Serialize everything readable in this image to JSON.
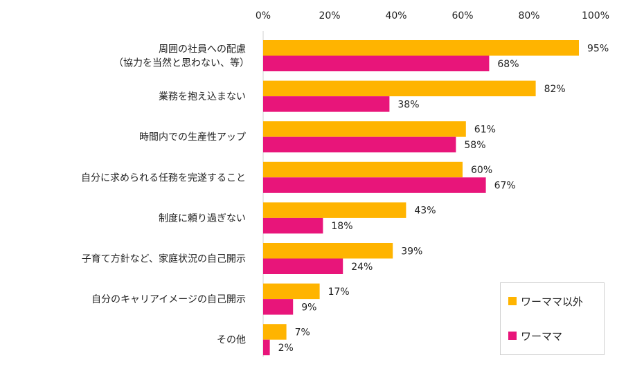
{
  "chart_data": {
    "type": "bar",
    "orientation": "horizontal",
    "title": "",
    "xlabel": "",
    "ylabel": "",
    "xlim": [
      0,
      100
    ],
    "x_ticks": [
      "0%",
      "20%",
      "40%",
      "60%",
      "80%",
      "100%"
    ],
    "tick_values": [
      0,
      20,
      40,
      60,
      80,
      100
    ],
    "grid": false,
    "legend_position": "bottom-right",
    "categories": [
      [
        "周囲の社員への配慮",
        "（協力を当然と思わない、等）"
      ],
      [
        "業務を抱え込まない"
      ],
      [
        "時間内での生産性アップ"
      ],
      [
        "自分に求められる任務を完遂すること"
      ],
      [
        "制度に頼り過ぎない"
      ],
      [
        "子育て方針など、家庭状況の自己開示"
      ],
      [
        "自分のキャリアイメージの自己開示"
      ],
      [
        "その他"
      ]
    ],
    "series": [
      {
        "name": "ワーママ以外",
        "color": "#FFB400",
        "values": [
          95,
          82,
          61,
          60,
          43,
          39,
          17,
          7
        ]
      },
      {
        "name": "ワーママ",
        "color": "#E8157A",
        "values": [
          68,
          38,
          58,
          67,
          18,
          24,
          9,
          2
        ]
      }
    ],
    "value_suffix": "%"
  }
}
